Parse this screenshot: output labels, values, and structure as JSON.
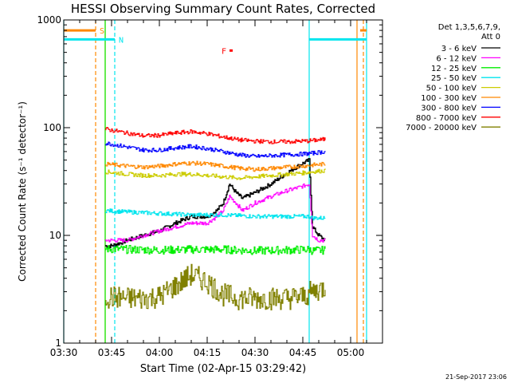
{
  "chart_data": {
    "type": "line",
    "title": "HESSI Observing Summary Count Rates, Corrected",
    "xlabel": "Start Time (02-Apr-15 03:29:42)",
    "ylabel": "Corrected Count Rate (s⁻¹ detector⁻¹)",
    "y_scale": "log",
    "ylim": [
      1,
      1000
    ],
    "xlim": [
      "03:30",
      "05:10"
    ],
    "x_ticks": [
      "03:30",
      "03:45",
      "04:00",
      "04:15",
      "04:30",
      "04:45",
      "05:00"
    ],
    "y_ticks": [
      "1",
      "10",
      "100",
      "1000"
    ],
    "footer": "21-Sep-2017 23:06",
    "legend_header": [
      "Det 1,3,5,6,7,9,",
      "Att 0"
    ],
    "legend_position": "right",
    "series": [
      {
        "name": "3 - 6 keV",
        "color": "#000000",
        "x": [
          "03:43",
          "03:45",
          "03:50",
          "03:55",
          "04:00",
          "04:05",
          "04:10",
          "04:15",
          "04:18",
          "04:20",
          "04:22",
          "04:24",
          "04:26",
          "04:30",
          "04:35",
          "04:40",
          "04:44",
          "04:47",
          "04:48",
          "04:50",
          "04:52"
        ],
        "y": [
          8,
          8,
          9,
          10,
          11,
          13,
          15,
          15,
          17,
          20,
          30,
          25,
          22,
          25,
          30,
          38,
          45,
          50,
          12,
          10,
          9
        ]
      },
      {
        "name": "6 - 12 keV",
        "color": "#ff00ff",
        "x": [
          "03:43",
          "03:45",
          "03:50",
          "03:55",
          "04:00",
          "04:05",
          "04:10",
          "04:15",
          "04:18",
          "04:20",
          "04:22",
          "04:24",
          "04:26",
          "04:30",
          "04:35",
          "04:40",
          "04:44",
          "04:47",
          "04:48",
          "04:50",
          "04:52"
        ],
        "y": [
          9,
          9,
          9,
          10,
          11,
          12,
          13,
          13,
          15,
          17,
          23,
          20,
          17,
          20,
          23,
          26,
          28,
          30,
          10,
          9,
          9
        ]
      },
      {
        "name": "12 - 25 keV",
        "color": "#00ee00",
        "x": [
          "03:43",
          "03:50",
          "04:00",
          "04:10",
          "04:20",
          "04:30",
          "04:40",
          "04:47",
          "04:48",
          "04:52"
        ],
        "y": [
          7.5,
          7.4,
          7.3,
          7.4,
          7.4,
          7.2,
          7.3,
          7.4,
          7.2,
          7.3
        ]
      },
      {
        "name": "25 - 50 keV",
        "color": "#00e5ee",
        "x": [
          "03:43",
          "03:50",
          "04:00",
          "04:10",
          "04:20",
          "04:30",
          "04:40",
          "04:47",
          "04:48",
          "04:52"
        ],
        "y": [
          17,
          16.5,
          16,
          15.5,
          15.5,
          15,
          15,
          15,
          14.5,
          14.5
        ]
      },
      {
        "name": "50 - 100 keV",
        "color": "#cccc00",
        "x": [
          "03:43",
          "03:50",
          "03:55",
          "04:00",
          "04:05",
          "04:10",
          "04:15",
          "04:20",
          "04:25",
          "04:30",
          "04:35",
          "04:40",
          "04:45",
          "04:48",
          "04:52"
        ],
        "y": [
          39,
          37,
          36,
          36,
          37,
          37,
          36,
          35,
          34,
          35,
          36,
          37,
          38,
          39,
          40
        ]
      },
      {
        "name": "100 - 300 keV",
        "color": "#ff8800",
        "x": [
          "03:43",
          "03:50",
          "03:55",
          "04:00",
          "04:05",
          "04:10",
          "04:15",
          "04:20",
          "04:25",
          "04:30",
          "04:35",
          "04:40",
          "04:45",
          "04:48",
          "04:52"
        ],
        "y": [
          46,
          44,
          43,
          44,
          46,
          47,
          46,
          44,
          42,
          41,
          42,
          43,
          44,
          45,
          46
        ]
      },
      {
        "name": "300 - 800 keV",
        "color": "#0000ff",
        "x": [
          "03:43",
          "03:50",
          "03:55",
          "04:00",
          "04:05",
          "04:10",
          "04:15",
          "04:20",
          "04:25",
          "04:30",
          "04:35",
          "04:40",
          "04:45",
          "04:48",
          "04:52"
        ],
        "y": [
          72,
          66,
          62,
          62,
          65,
          67,
          64,
          60,
          56,
          54,
          55,
          56,
          57,
          58,
          60
        ]
      },
      {
        "name": "800 - 7000 keV",
        "color": "#ff0000",
        "x": [
          "03:43",
          "03:50",
          "03:55",
          "04:00",
          "04:05",
          "04:10",
          "04:15",
          "04:20",
          "04:25",
          "04:30",
          "04:35",
          "04:40",
          "04:45",
          "04:48",
          "04:52"
        ],
        "y": [
          97,
          89,
          84,
          85,
          89,
          92,
          88,
          82,
          77,
          75,
          74,
          74,
          75,
          76,
          78
        ]
      },
      {
        "name": "7000 - 20000 keV",
        "color": "#808000",
        "x": [
          "03:43",
          "03:50",
          "03:55",
          "04:00",
          "04:05",
          "04:10",
          "04:15",
          "04:20",
          "04:25",
          "04:30",
          "04:35",
          "04:40",
          "04:45",
          "04:48",
          "04:52"
        ],
        "y": [
          2.7,
          2.6,
          2.6,
          2.7,
          3.4,
          4.3,
          3.7,
          2.8,
          2.6,
          2.6,
          2.6,
          2.6,
          2.7,
          3.0,
          3.3
        ]
      }
    ],
    "flags": [
      {
        "label": "S",
        "color": "#ff8800",
        "segments": [
          [
            "03:30",
            "03:40"
          ],
          [
            "05:03",
            "05:05"
          ]
        ],
        "level": 800
      },
      {
        "label": "N",
        "color": "#00e5ee",
        "segments": [
          [
            "03:30",
            "03:46"
          ],
          [
            "04:47",
            "05:05"
          ]
        ],
        "level": 660
      },
      {
        "label": "F",
        "color": "#ff0000",
        "segments": [
          [
            "04:22",
            "04:23"
          ]
        ],
        "level": 520
      }
    ],
    "vertical_lines": [
      {
        "x": "03:30",
        "color": "#00e5ee",
        "style": "solid"
      },
      {
        "x": "03:40",
        "color": "#ff8800",
        "style": "dashed"
      },
      {
        "x": "03:43",
        "color": "#ff8800",
        "style": "solid"
      },
      {
        "x": "03:43",
        "color": "#00ee00",
        "style": "solid"
      },
      {
        "x": "03:46",
        "color": "#00e5ee",
        "style": "dashed"
      },
      {
        "x": "04:47",
        "color": "#00e5ee",
        "style": "solid"
      },
      {
        "x": "05:02",
        "color": "#ff8800",
        "style": "solid"
      },
      {
        "x": "05:04",
        "color": "#ff8800",
        "style": "dashed"
      },
      {
        "x": "05:05",
        "color": "#00e5ee",
        "style": "solid"
      }
    ]
  }
}
